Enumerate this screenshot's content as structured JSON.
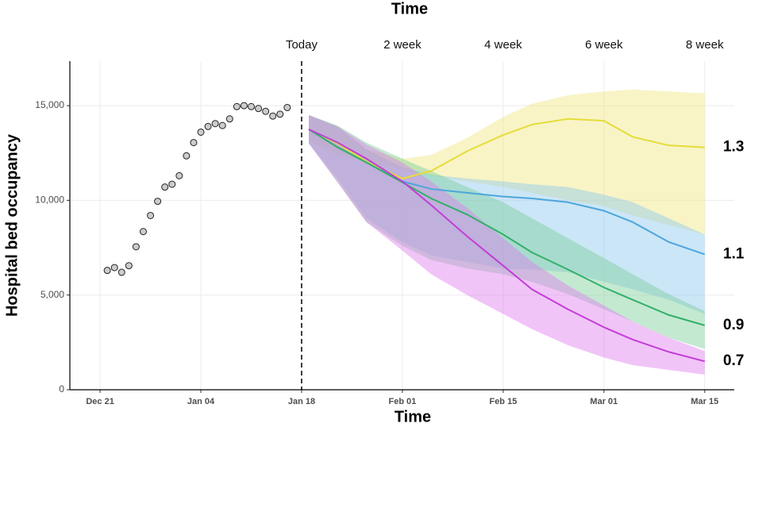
{
  "chart_data": {
    "type": "line",
    "xlabel": "Time",
    "top_xlabel": "Time",
    "ylabel": "Hospital bed occupancy",
    "xlim": [
      -4.2,
      88.1
    ],
    "ylim": [
      0,
      17350
    ],
    "xticks": [
      {
        "value": 0,
        "label": "Dec 21"
      },
      {
        "value": 14,
        "label": "Jan 04"
      },
      {
        "value": 28,
        "label": "Jan 18"
      },
      {
        "value": 42,
        "label": "Feb 01"
      },
      {
        "value": 56,
        "label": "Feb 15"
      },
      {
        "value": 70,
        "label": "Mar 01"
      },
      {
        "value": 84,
        "label": "Mar 15"
      }
    ],
    "top_xticks": [
      {
        "value": 28,
        "label": "Today"
      },
      {
        "value": 42,
        "label": "2 week"
      },
      {
        "value": 56,
        "label": "4 week"
      },
      {
        "value": 70,
        "label": "6 week"
      },
      {
        "value": 84,
        "label": "8 week"
      }
    ],
    "yticks": [
      0,
      {
        "value": 5000,
        "label": "5,000"
      },
      {
        "value": 10000,
        "label": "10,000"
      },
      {
        "value": 15000,
        "label": "15,000"
      }
    ],
    "grid": true,
    "observed": {
      "color": "#cccccc",
      "x": [
        1,
        2,
        3,
        4,
        5,
        6,
        7,
        8,
        9,
        10,
        11,
        12,
        13,
        14,
        15,
        16,
        17,
        18,
        19,
        20,
        21,
        22,
        23,
        24,
        25,
        26
      ],
      "values": [
        6300,
        6450,
        6200,
        6550,
        7550,
        8350,
        9200,
        9950,
        10700,
        10850,
        11300,
        12350,
        13050,
        13600,
        13900,
        14050,
        13950,
        14300,
        14950,
        15000,
        14950,
        14850,
        14700,
        14450,
        14550,
        14900
      ]
    },
    "x": [
      29,
      33,
      37,
      42,
      46,
      51,
      56,
      60,
      65,
      70,
      74,
      79,
      84
    ],
    "series": [
      {
        "name": "1.3",
        "color": "#e6dc3a",
        "band_color": "#f0e680",
        "values": [
          13750,
          13000,
          12050,
          11150,
          11550,
          12600,
          13450,
          14000,
          14300,
          14200,
          13350,
          12900,
          12800
        ],
        "lower": [
          13100,
          12400,
          12000,
          11600,
          11300,
          11000,
          10700,
          10400,
          10000,
          9700,
          9200,
          8700,
          8200
        ],
        "upper": [
          14500,
          13900,
          12700,
          12200,
          12400,
          13300,
          14400,
          15100,
          15550,
          15750,
          15850,
          15750,
          15650
        ]
      },
      {
        "name": "1.1",
        "color": "#4da6dc",
        "band_color": "#8cc8ee",
        "values": [
          13750,
          12800,
          12000,
          11000,
          10600,
          10400,
          10200,
          10100,
          9900,
          9450,
          8850,
          7800,
          7150
        ],
        "lower": [
          13000,
          11150,
          9050,
          7800,
          7100,
          6750,
          6400,
          6350,
          6200,
          5700,
          5300,
          4750,
          4000
        ],
        "upper": [
          14500,
          13900,
          12700,
          11750,
          11350,
          11150,
          11000,
          10850,
          10700,
          10300,
          9900,
          9050,
          8200
        ]
      },
      {
        "name": "0.9",
        "color": "#33b06a",
        "band_color": "#7ccf98",
        "values": [
          13750,
          12800,
          12000,
          10950,
          10100,
          9250,
          8200,
          7250,
          6350,
          5400,
          4750,
          3950,
          3400
        ],
        "lower": [
          13000,
          10950,
          8850,
          7600,
          6850,
          6400,
          6100,
          5700,
          5050,
          4250,
          3600,
          2750,
          2150
        ],
        "upper": [
          14500,
          13950,
          13050,
          12200,
          11550,
          10700,
          9900,
          9050,
          8000,
          6950,
          6100,
          5050,
          4150
        ]
      },
      {
        "name": "0.7",
        "color": "#c23ed6",
        "band_color": "#e07cef",
        "values": [
          13750,
          13050,
          12200,
          11000,
          9750,
          8100,
          6550,
          5300,
          4250,
          3300,
          2650,
          2000,
          1500
        ],
        "lower": [
          13000,
          10950,
          8850,
          7350,
          6100,
          5000,
          4000,
          3200,
          2350,
          1700,
          1300,
          1050,
          800
        ],
        "upper": [
          14500,
          13900,
          12950,
          12000,
          11000,
          9600,
          8000,
          6750,
          5500,
          4450,
          3600,
          2750,
          2050
        ]
      }
    ]
  }
}
